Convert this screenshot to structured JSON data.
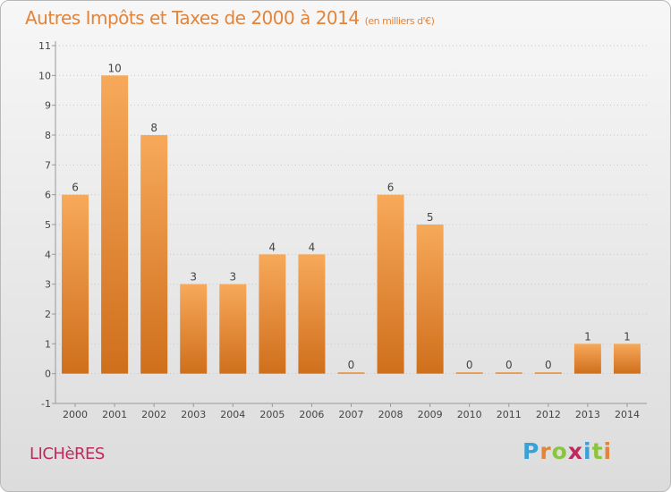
{
  "header": {
    "title": "Autres Impôts et Taxes de 2000 à 2014",
    "subtitle": "(en milliers d'€)"
  },
  "footer": {
    "commune": "LICHèRES",
    "logo_text": "Proxiti"
  },
  "colors": {
    "title": "#e2843a",
    "bar_light": "#f7a95a",
    "bar_dark": "#cf6f1c",
    "commune": "#c0295e",
    "logo": [
      "#3aa0d8",
      "#e2843a",
      "#8bc53f",
      "#c0295e",
      "#3aa0d8",
      "#8bc53f",
      "#e2843a"
    ]
  },
  "chart_data": {
    "type": "bar",
    "categories": [
      "2000",
      "2001",
      "2002",
      "2003",
      "2004",
      "2005",
      "2006",
      "2007",
      "2008",
      "2009",
      "2010",
      "2011",
      "2012",
      "2013",
      "2014"
    ],
    "values": [
      6,
      10,
      8,
      3,
      3,
      4,
      4,
      0,
      6,
      5,
      0,
      0,
      0,
      1,
      1
    ],
    "data_labels": [
      "6",
      "10",
      "8",
      "3",
      "3",
      "4",
      "4",
      "0",
      "6",
      "5",
      "0",
      "0",
      "0",
      "1",
      "1"
    ],
    "y_ticks": [
      "-1",
      "0",
      "1",
      "2",
      "3",
      "4",
      "5",
      "6",
      "7",
      "8",
      "9",
      "10",
      "11"
    ],
    "ylim": [
      -1,
      11
    ],
    "grid": true
  }
}
